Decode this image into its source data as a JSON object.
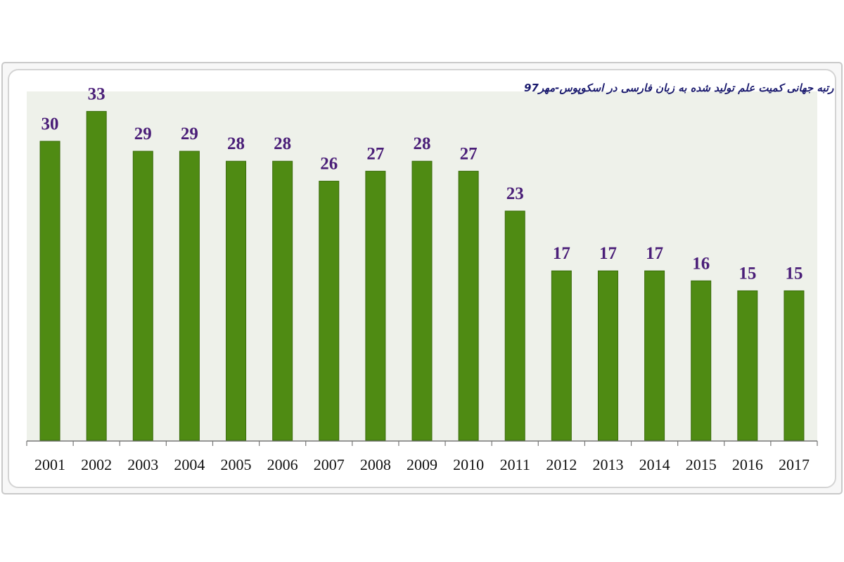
{
  "chart_data": {
    "type": "bar",
    "title": "رتبه جهانی کمیت علم تولید شده به زبان فارسی در اسکوپوس-مهر97",
    "categories": [
      "2001",
      "2002",
      "2003",
      "2004",
      "2005",
      "2006",
      "2007",
      "2008",
      "2009",
      "2010",
      "2011",
      "2012",
      "2013",
      "2014",
      "2015",
      "2016",
      "2017"
    ],
    "values": [
      30,
      33,
      29,
      29,
      28,
      28,
      26,
      27,
      28,
      27,
      23,
      17,
      17,
      17,
      16,
      15,
      15
    ],
    "color": "#4f8b13",
    "ylim": [
      0,
      35
    ]
  }
}
